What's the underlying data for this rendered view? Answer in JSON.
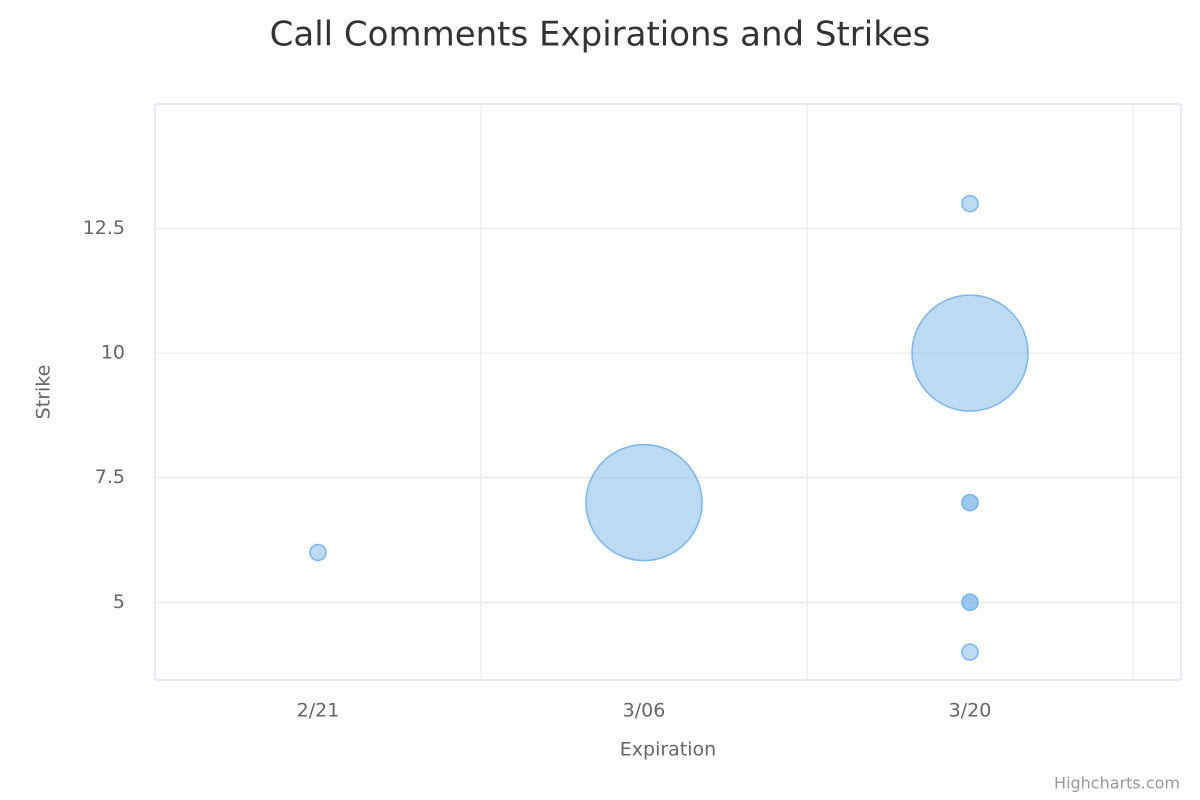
{
  "chart_data": {
    "type": "bubble",
    "title": "Call Comments Expirations and Strikes",
    "x_label": "Expiration",
    "y_label": "Strike",
    "credits": "Highcharts.com",
    "categories": [
      "2/21",
      "3/06",
      "3/20"
    ],
    "series": [
      {
        "color": "#7cb5ec",
        "x": [
          "2/21",
          "3/06",
          "3/20",
          "3/20",
          "3/20",
          "3/20",
          "3/20",
          "3/20",
          "3/20"
        ],
        "values": [
          6,
          7,
          13,
          10,
          7,
          7,
          5,
          5,
          4
        ],
        "sizes": [
          1,
          40,
          1,
          40,
          1,
          1,
          1,
          1,
          1
        ]
      }
    ],
    "ylim": [
      3.44,
      15
    ],
    "yticks": [
      5,
      7.5,
      10,
      12.5
    ],
    "grid": true
  }
}
